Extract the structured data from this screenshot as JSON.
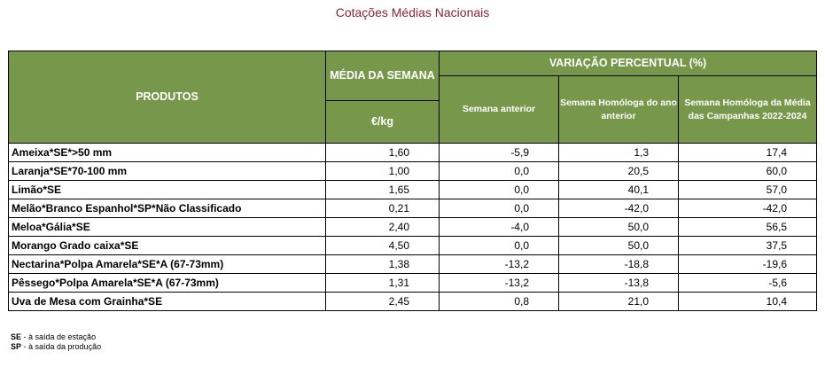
{
  "title": "Cotações Médias Nacionais",
  "table": {
    "header": {
      "produtos": "PRODUTOS",
      "media_semana": "MÉDIA DA SEMANA",
      "variacao": "VARIAÇÃO PERCENTUAL (%)",
      "unit": "€/kg",
      "semana_anterior": "Semana anterior",
      "semana_homologa": "Semana Homóloga do ano anterior",
      "semana_homologa_media": "Semana Homóloga da Média das Campanhas 2022-2024"
    },
    "rows": [
      {
        "produto": "Ameixa*SE*>50 mm",
        "media": "1,60",
        "anterior": "-5,9",
        "homologa": "1,3",
        "media_campanhas": "17,4"
      },
      {
        "produto": "Laranja*SE*70-100 mm",
        "media": "1,00",
        "anterior": "0,0",
        "homologa": "20,5",
        "media_campanhas": "60,0"
      },
      {
        "produto": "Limão*SE",
        "media": "1,65",
        "anterior": "0,0",
        "homologa": "40,1",
        "media_campanhas": "57,0"
      },
      {
        "produto": "Melão*Branco Espanhol*SP*Não Classificado",
        "media": "0,21",
        "anterior": "0,0",
        "homologa": "-42,0",
        "media_campanhas": "-42,0"
      },
      {
        "produto": "Meloa*Gália*SE",
        "media": "2,40",
        "anterior": "-4,0",
        "homologa": "50,0",
        "media_campanhas": "56,5"
      },
      {
        "produto": "Morango Grado caixa*SE",
        "media": "4,50",
        "anterior": "0,0",
        "homologa": "50,0",
        "media_campanhas": "37,5"
      },
      {
        "produto": "Nectarina*Polpa Amarela*SE*A (67-73mm)",
        "media": "1,38",
        "anterior": "-13,2",
        "homologa": "-18,8",
        "media_campanhas": "-19,6"
      },
      {
        "produto": "Pêssego*Polpa Amarela*SE*A (67-73mm)",
        "media": "1,31",
        "anterior": "-13,2",
        "homologa": "-13,8",
        "media_campanhas": "-5,6"
      },
      {
        "produto": "Uva de Mesa com Grainha*SE",
        "media": "2,45",
        "anterior": "0,8",
        "homologa": "21,0",
        "media_campanhas": "10,4"
      }
    ]
  },
  "notes": [
    {
      "code": "SE",
      "text": " - à saída de estação"
    },
    {
      "code": "SP",
      "text": " - à saída da produção"
    }
  ],
  "colors": {
    "header_bg": "#77974b",
    "title": "#8b2332"
  }
}
